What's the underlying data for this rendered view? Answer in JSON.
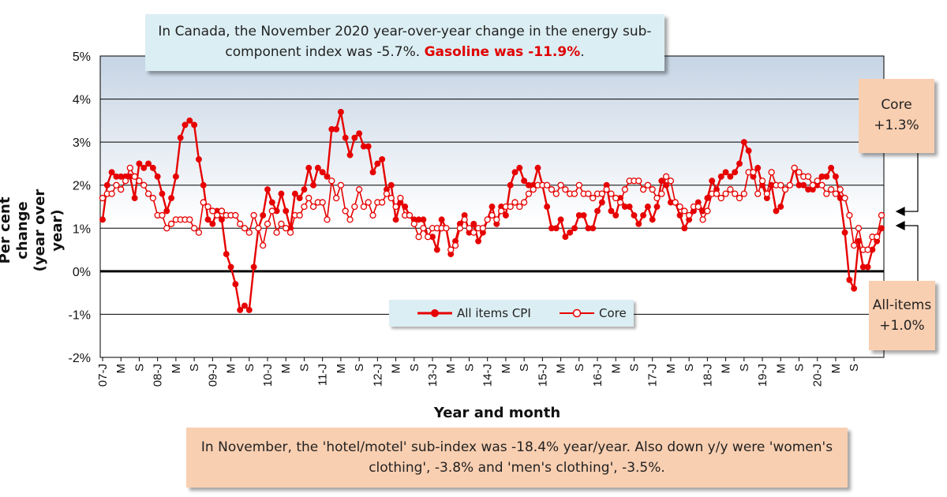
{
  "callout_top": {
    "text": "In Canada, the November 2020 year-over-year change in the energy sub-component index was -5.7%.",
    "highlight": "Gasoline was -11.9%",
    "tail": "."
  },
  "callout_bottom": {
    "text": "In November, the 'hotel/motel' sub-index was -18.4% year/year. Also down y/y were 'women's clothing', -3.8% and 'men's clothing', -3.5%."
  },
  "core_box": {
    "line1": "Core",
    "line2": "+1.3%"
  },
  "all_items_box": {
    "line1": "All-items",
    "line2": "+1.0%"
  },
  "colors": {
    "series": "#e60000",
    "plot_bg_top": "#c6d4e4",
    "callout_blue": "#dbeef3",
    "callout_peach": "#f9cfb1"
  },
  "chart_data": {
    "type": "line",
    "xlabel": "Year and month",
    "ylabel_line1": "Per cent change",
    "ylabel_line2": "(year over year)",
    "ylim": [
      -2,
      5
    ],
    "yticks": [
      "-2%",
      "-1%",
      "0%",
      "1%",
      "2%",
      "3%",
      "4%",
      "5%"
    ],
    "grid": true,
    "legend": "bottom-center",
    "x_start": "2007-01",
    "x_tick_labels": [
      "07-J",
      "M",
      "S",
      "08-J",
      "M",
      "S",
      "09-J",
      "M",
      "S",
      "10-J",
      "M",
      "S",
      "11-J",
      "M",
      "S",
      "12-J",
      "M",
      "S",
      "13-J",
      "M",
      "S",
      "14-J",
      "M",
      "S",
      "15-J",
      "M",
      "S",
      "16-J",
      "M",
      "S",
      "17-J",
      "M",
      "S",
      "18-J",
      "M",
      "S",
      "19-J",
      "M",
      "S",
      "20-J",
      "M",
      "S"
    ],
    "series": [
      {
        "name": "All items CPI",
        "marker": "filled",
        "values": [
          1.2,
          2.0,
          2.3,
          2.2,
          2.2,
          2.2,
          2.2,
          1.7,
          2.5,
          2.4,
          2.5,
          2.4,
          2.2,
          1.8,
          1.4,
          1.7,
          2.2,
          3.1,
          3.4,
          3.5,
          3.4,
          2.6,
          2.0,
          1.2,
          1.1,
          1.4,
          1.2,
          0.4,
          0.1,
          -0.3,
          -0.9,
          -0.8,
          -0.9,
          0.1,
          1.0,
          1.3,
          1.9,
          1.6,
          1.4,
          1.8,
          1.4,
          1.0,
          1.8,
          1.7,
          1.9,
          2.4,
          2.0,
          2.4,
          2.3,
          2.2,
          3.3,
          3.3,
          3.7,
          3.1,
          2.7,
          3.1,
          3.2,
          2.9,
          2.9,
          2.3,
          2.5,
          2.6,
          1.9,
          2.0,
          1.2,
          1.6,
          1.5,
          1.3,
          1.2,
          1.2,
          1.2,
          0.8,
          0.8,
          0.5,
          1.2,
          1.0,
          0.4,
          0.7,
          1.1,
          1.3,
          0.9,
          1.1,
          0.7,
          0.9,
          1.2,
          1.5,
          1.1,
          1.5,
          1.3,
          2.0,
          2.3,
          2.4,
          2.1,
          2.0,
          2.0,
          2.4,
          2.0,
          1.5,
          1.0,
          1.0,
          1.2,
          0.8,
          0.9,
          1.0,
          1.3,
          1.3,
          1.0,
          1.0,
          1.4,
          1.6,
          2.0,
          1.4,
          1.3,
          1.7,
          1.5,
          1.5,
          1.3,
          1.1,
          1.3,
          1.5,
          1.2,
          1.5,
          2.1,
          2.0,
          1.6,
          1.6,
          1.3,
          1.0,
          1.2,
          1.4,
          1.6,
          1.4,
          1.7,
          2.1,
          1.9,
          2.2,
          2.3,
          2.2,
          2.3,
          2.5,
          3.0,
          2.8,
          2.2,
          2.4,
          2.0,
          1.7,
          2.0,
          1.4,
          1.5,
          1.9,
          2.0,
          2.4,
          2.0,
          2.0,
          1.9,
          1.9,
          2.0,
          2.2,
          2.2,
          2.4,
          2.2,
          1.7,
          0.9,
          -0.2,
          -0.4,
          0.7,
          0.1,
          0.1,
          0.5,
          0.7,
          1.0
        ]
      },
      {
        "name": "Core",
        "marker": "hollow",
        "values": [
          1.7,
          1.8,
          1.8,
          2.0,
          1.9,
          2.1,
          2.4,
          2.2,
          2.1,
          2.0,
          1.8,
          1.7,
          1.3,
          1.3,
          1.0,
          1.1,
          1.2,
          1.2,
          1.2,
          1.2,
          1.0,
          0.9,
          1.6,
          1.5,
          1.4,
          1.3,
          1.4,
          1.3,
          1.3,
          1.3,
          1.1,
          1.0,
          0.9,
          1.3,
          1.0,
          0.6,
          1.1,
          1.4,
          0.9,
          1.1,
          1.0,
          0.9,
          1.3,
          1.3,
          1.5,
          1.7,
          1.5,
          1.6,
          1.6,
          1.2,
          2.1,
          1.7,
          2.0,
          1.4,
          1.2,
          1.5,
          1.9,
          1.5,
          1.6,
          1.3,
          1.6,
          1.6,
          1.8,
          1.7,
          1.5,
          1.7,
          1.3,
          1.3,
          1.1,
          0.8,
          1.0,
          0.8,
          1.0,
          1.0,
          1.0,
          1.0,
          0.5,
          0.6,
          1.0,
          1.2,
          1.0,
          0.9,
          1.0,
          1.0,
          1.2,
          1.3,
          1.2,
          1.4,
          1.5,
          1.5,
          1.6,
          1.5,
          1.6,
          1.8,
          1.9,
          2.0,
          2.0,
          2.0,
          1.9,
          1.8,
          2.0,
          1.9,
          1.8,
          1.8,
          2.0,
          1.8,
          1.8,
          1.7,
          1.8,
          1.8,
          1.9,
          1.8,
          1.7,
          1.6,
          1.9,
          2.1,
          2.1,
          2.1,
          1.9,
          2.0,
          1.9,
          1.7,
          1.8,
          2.2,
          2.1,
          1.6,
          1.5,
          1.4,
          1.3,
          1.5,
          1.5,
          1.2,
          1.4,
          1.8,
          1.8,
          1.7,
          1.8,
          1.9,
          1.8,
          1.7,
          1.8,
          2.3,
          2.3,
          1.8,
          2.1,
          1.8,
          2.3,
          2.0,
          2.0,
          1.9,
          2.0,
          2.4,
          2.3,
          2.2,
          2.2,
          2.0,
          2.1,
          2.0,
          1.8,
          1.9,
          1.8,
          1.9,
          1.7,
          1.3,
          0.6,
          1.0,
          0.5,
          0.5,
          0.8,
          0.8,
          1.3
        ]
      }
    ]
  }
}
